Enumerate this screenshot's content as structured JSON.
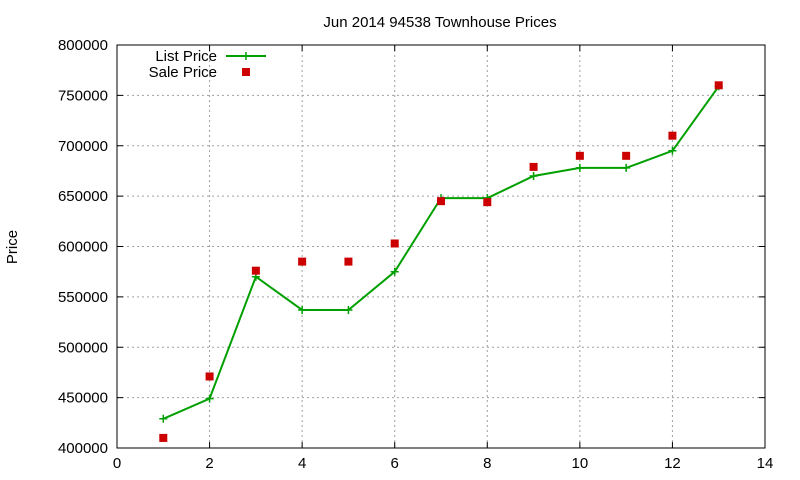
{
  "chart_data": {
    "type": "line",
    "title": "Jun 2014 94538 Townhouse Prices",
    "xlabel": "",
    "ylabel": "Price",
    "xlim": [
      0,
      14
    ],
    "ylim": [
      400000,
      800000
    ],
    "xticks": [
      0,
      2,
      4,
      6,
      8,
      10,
      12,
      14
    ],
    "yticks": [
      400000,
      450000,
      500000,
      550000,
      600000,
      650000,
      700000,
      750000,
      800000
    ],
    "grid": true,
    "legend_position": "top-left",
    "series": [
      {
        "name": "List Price",
        "style": "line-plus",
        "color": "#00a000",
        "points": [
          [
            1,
            429000
          ],
          [
            2,
            449000
          ],
          [
            3,
            570000
          ],
          [
            4,
            537000
          ],
          [
            5,
            537000
          ],
          [
            6,
            575000
          ],
          [
            7,
            648000
          ],
          [
            8,
            648000
          ],
          [
            9,
            670000
          ],
          [
            10,
            678000
          ],
          [
            11,
            678000
          ],
          [
            12,
            695000
          ],
          [
            13,
            759000
          ]
        ]
      },
      {
        "name": "Sale Price",
        "style": "square",
        "color": "#cc0000",
        "points": [
          [
            1,
            410000
          ],
          [
            2,
            471000
          ],
          [
            3,
            576000
          ],
          [
            4,
            585000
          ],
          [
            5,
            585000
          ],
          [
            6,
            603000
          ],
          [
            7,
            645000
          ],
          [
            8,
            644000
          ],
          [
            9,
            679000
          ],
          [
            10,
            690000
          ],
          [
            11,
            690000
          ],
          [
            12,
            710000
          ],
          [
            13,
            760000
          ]
        ]
      }
    ]
  }
}
